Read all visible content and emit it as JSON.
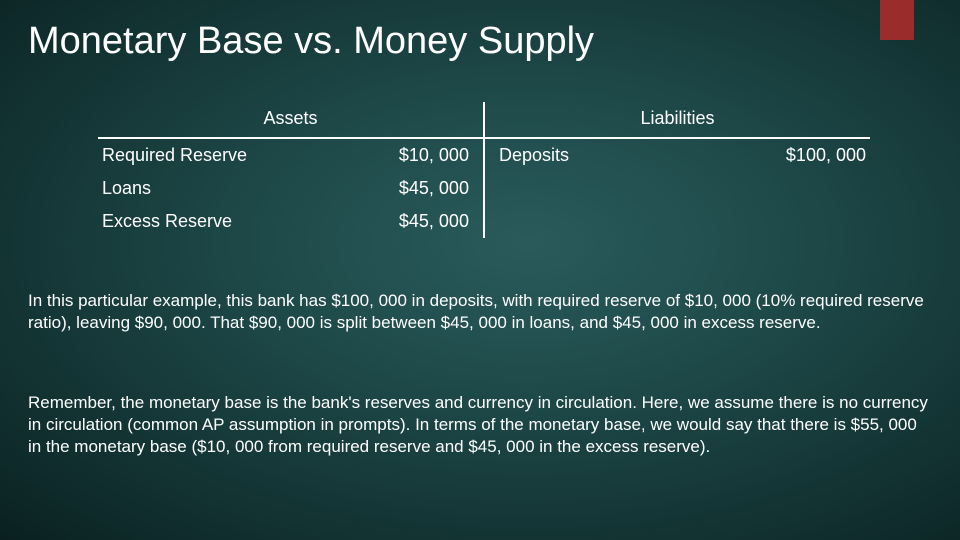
{
  "colors": {
    "background_center": "#2a5b5b",
    "background_edge": "#0a2020",
    "accent": "#9b2c2c",
    "text": "#ffffff",
    "border": "#ffffff"
  },
  "typography": {
    "title_fontsize": 38,
    "title_family": "Segoe UI",
    "body_fontsize": 17,
    "cell_fontsize": 18
  },
  "title": "Monetary Base vs. Money Supply",
  "table": {
    "type": "t-account",
    "headers": {
      "left": "Assets",
      "right": "Liabilities"
    },
    "rows": [
      {
        "asset_label": "Required Reserve",
        "asset_amount": "$10, 000",
        "liab_label": "Deposits",
        "liab_amount": "$100, 000"
      },
      {
        "asset_label": "Loans",
        "asset_amount": "$45, 000",
        "liab_label": "",
        "liab_amount": ""
      },
      {
        "asset_label": "Excess Reserve",
        "asset_amount": "$45, 000",
        "liab_label": "",
        "liab_amount": ""
      }
    ]
  },
  "paragraphs": {
    "p1": "In this particular example, this bank has $100, 000 in deposits, with required reserve of $10, 000 (10% required reserve ratio), leaving $90, 000.  That $90, 000 is split between $45, 000 in loans, and $45, 000 in excess reserve.",
    "p2": "Remember, the monetary base is the bank's reserves and currency in circulation.  Here, we assume there is no currency in circulation (common AP assumption in prompts).  In terms of the monetary base, we would say that there is $55, 000 in the monetary base ($10, 000 from required reserve and $45, 000 in the excess reserve)."
  }
}
